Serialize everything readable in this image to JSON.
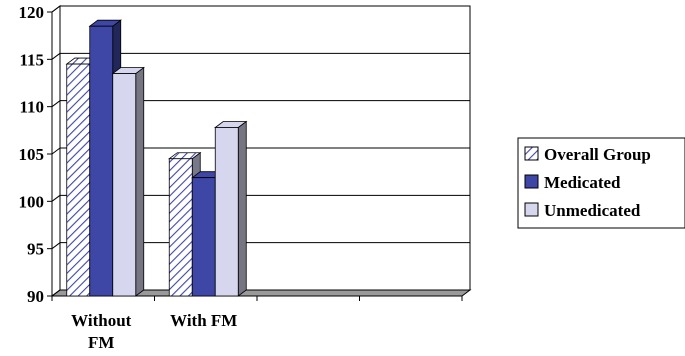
{
  "chart_data": {
    "type": "bar",
    "style": "3d-clustered-column",
    "categories": [
      "Without FM",
      "With FM",
      "",
      ""
    ],
    "category_lines": [
      [
        "Without",
        "FM"
      ],
      [
        "With FM"
      ],
      [],
      []
    ],
    "series": [
      {
        "name": "Overall Group",
        "values": [
          114.5,
          104.5,
          null,
          null
        ],
        "color": "#c8c8e8",
        "pattern": "diagonal-stripes"
      },
      {
        "name": "Medicated",
        "values": [
          118.5,
          102.5,
          null,
          null
        ],
        "color": "#3e46a6",
        "pattern": "solid"
      },
      {
        "name": "Unmedicated",
        "values": [
          113.5,
          107.8,
          null,
          null
        ],
        "color": "#d6d6ee",
        "pattern": "solid"
      }
    ],
    "ylim": [
      90,
      120
    ],
    "yticks": [
      90,
      95,
      100,
      105,
      110,
      115,
      120
    ],
    "grid": true,
    "legend_position": "right",
    "title": "",
    "xlabel": "",
    "ylabel": ""
  }
}
